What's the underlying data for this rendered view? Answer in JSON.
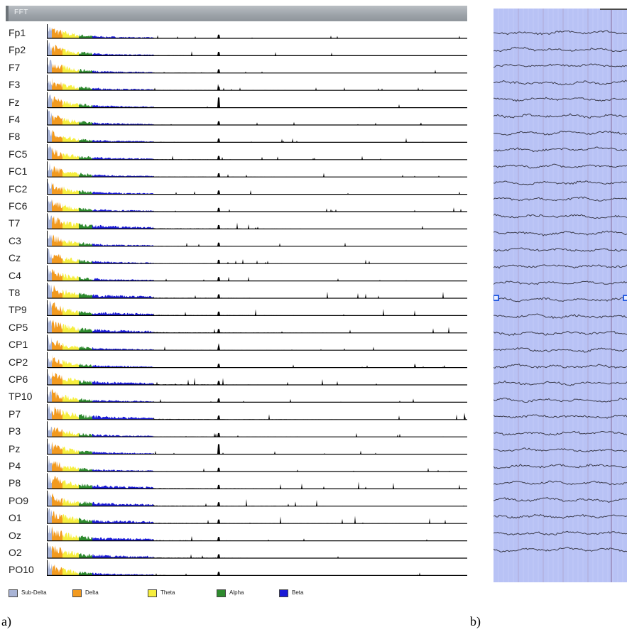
{
  "panel_a": {
    "title": "FFT",
    "channels": [
      "Fp1",
      "Fp2",
      "F7",
      "F3",
      "Fz",
      "F4",
      "F8",
      "FC5",
      "FC1",
      "FC2",
      "FC6",
      "T7",
      "C3",
      "Cz",
      "C4",
      "T8",
      "TP9",
      "CP5",
      "CP1",
      "CP2",
      "CP6",
      "TP10",
      "P7",
      "P3",
      "Pz",
      "P4",
      "P8",
      "PO9",
      "O1",
      "Oz",
      "O2",
      "PO10"
    ],
    "legend": [
      {
        "label": "Sub-Delta",
        "color": "#a9b4d6"
      },
      {
        "label": "Delta",
        "color": "#f29a1f"
      },
      {
        "label": "Theta",
        "color": "#f6ee3e"
      },
      {
        "label": "Alpha",
        "color": "#2e8b2e"
      },
      {
        "label": "Beta",
        "color": "#1a1ad6"
      }
    ],
    "colors": {
      "sub_delta": "#a9b4d6",
      "delta": "#f29a1f",
      "theta": "#f6ee3e",
      "alpha": "#2e8b2e",
      "beta": "#1a1ad6",
      "gamma": "#000000"
    }
  },
  "panel_b": {
    "colors": {
      "background": "#b8c2f5",
      "gridline": "#8a6e9a",
      "trace": "#3a3a4a"
    },
    "marker_color": "#2b5fe0"
  },
  "captions": {
    "a": "a)",
    "b": "b)"
  }
}
